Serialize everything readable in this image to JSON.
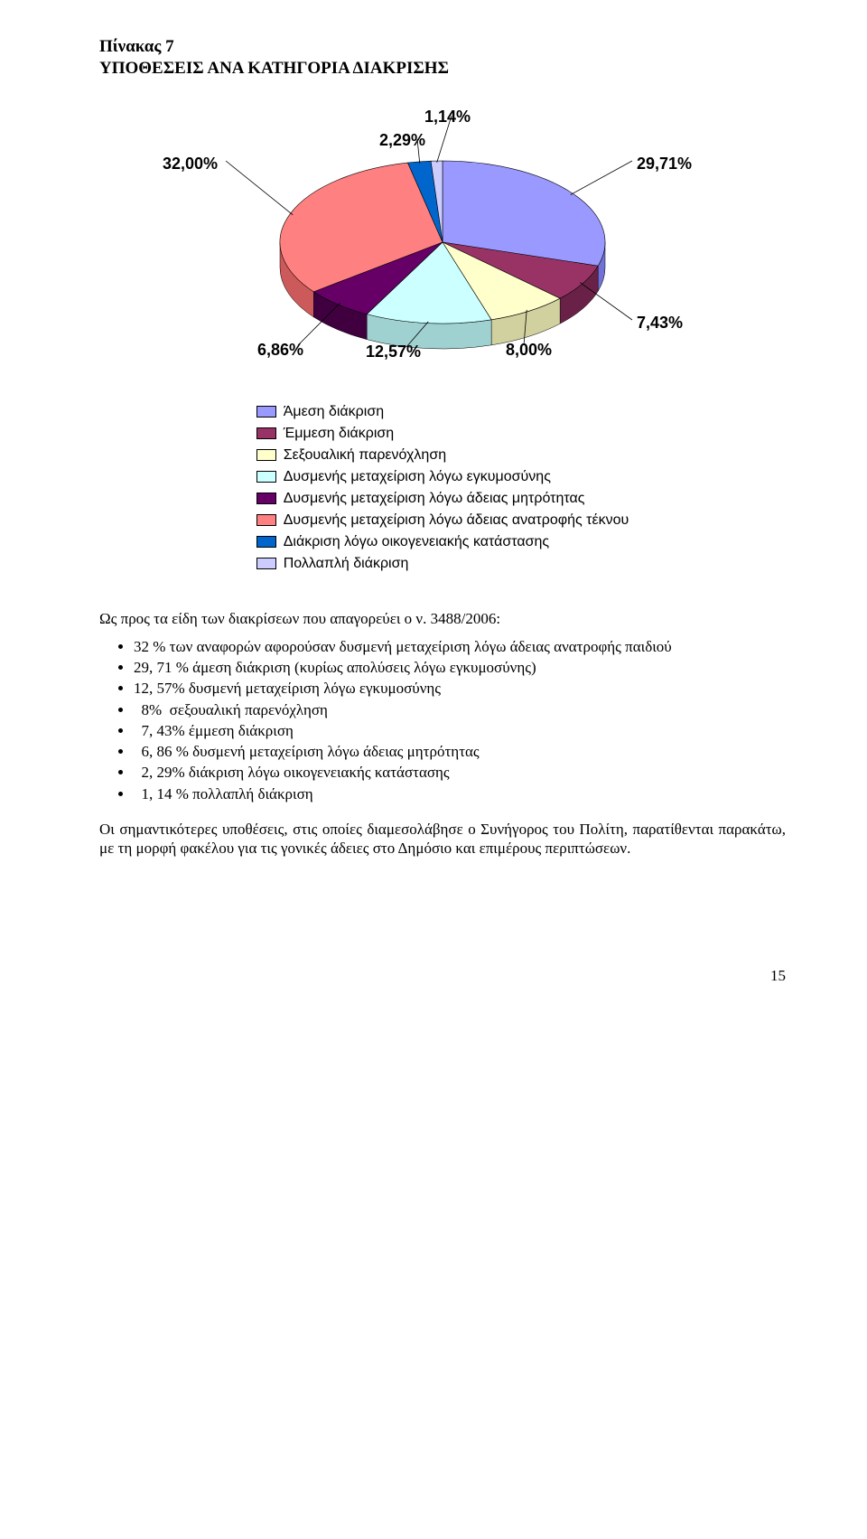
{
  "header": {
    "table_label": "Πίνακας 7",
    "title": "ΥΠΟΘΕΣΕΙΣ ΑΝΑ ΚΑΤΗΓΟΡΙΑ ΔΙΑΚΡΙΣΗΣ"
  },
  "chart": {
    "type": "pie",
    "background_color": "#ffffff",
    "label_font": "Arial",
    "label_fontsize": 18,
    "label_fontweight": "bold",
    "slices": [
      {
        "label": "29,71%",
        "value": 29.71,
        "color": "#9999ff",
        "side": "#7272d6",
        "legend": "Άμεση διάκριση"
      },
      {
        "label": "7,43%",
        "value": 7.43,
        "color": "#993366",
        "side": "#6a2147",
        "legend": "Έμμεση διάκριση"
      },
      {
        "label": "8,00%",
        "value": 8.0,
        "color": "#ffffcc",
        "side": "#d1d19f",
        "legend": "Σεξουαλική παρενόχληση"
      },
      {
        "label": "12,57%",
        "value": 12.57,
        "color": "#ccffff",
        "side": "#9fd1d1",
        "legend": "Δυσμενής μεταχείριση λόγω εγκυμοσύνης"
      },
      {
        "label": "6,86%",
        "value": 6.86,
        "color": "#660066",
        "side": "#400040",
        "legend": "Δυσμενής μεταχείριση λόγω άδειας μητρότητας"
      },
      {
        "label": "32,00%",
        "value": 32.0,
        "color": "#ff8080",
        "side": "#cc5a5a",
        "legend": "Δυσμενής μεταχείριση λόγω άδειας ανατροφής τέκνου"
      },
      {
        "label": "2,29%",
        "value": 2.29,
        "color": "#0066cc",
        "side": "#004a99",
        "legend": "Διάκριση λόγω οικογενειακής κατάστασης"
      },
      {
        "label": "1,14%",
        "value": 1.14,
        "color": "#ccccff",
        "side": "#9f9fd1",
        "legend": "Πολλαπλή διάκριση"
      }
    ],
    "legend_swatch_border": "#000000",
    "stroke": "#000000"
  },
  "text": {
    "intro": "Ως προς τα είδη των διακρίσεων που απαγορεύει ο ν. 3488/2006:",
    "bullets": [
      "32 % των αναφορών αφορούσαν δυσμενή μεταχείριση λόγω άδειας ανατροφής παιδιού",
      "29, 71 % άμεση διάκριση (κυρίως απολύσεις λόγω εγκυμοσύνης)",
      "12, 57% δυσμενή μεταχείριση λόγω εγκυμοσύνης",
      "  8%  σεξουαλική παρενόχληση",
      "  7, 43% έμμεση διάκριση",
      "  6, 86 % δυσμενή μεταχείριση λόγω άδειας μητρότητας",
      "  2, 29% διάκριση λόγω οικογενειακής κατάστασης",
      "  1, 14 % πολλαπλή διάκριση"
    ],
    "outro": "Οι σημαντικότερες υποθέσεις, στις οποίες διαμεσολάβησε ο Συνήγορος του Πολίτη, παρατίθενται παρακάτω, με τη μορφή φακέλου για τις γονικές άδειες στο Δημόσιο και επιμέρους περιπτώσεων."
  },
  "page_number": "15"
}
